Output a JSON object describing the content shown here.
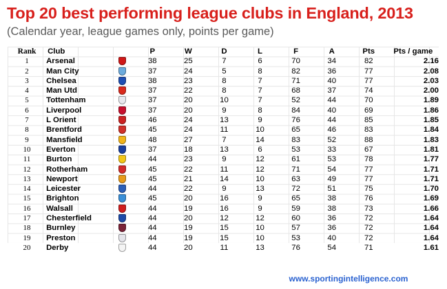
{
  "title": "Top 20 best performing league clubs in England, 2013",
  "subtitle": "(Calendar year, league games only, points per game)",
  "footer": "www.sportingintelligence.com",
  "chart_data": {
    "type": "table",
    "columns": [
      "Rank",
      "Club",
      "P",
      "W",
      "D",
      "L",
      "F",
      "A",
      "Pts",
      "Pts / game"
    ],
    "rows": [
      {
        "rank": "1",
        "club": "Arsenal",
        "crest_icon": "arsenal-crest-icon",
        "crest_color": "#d01818",
        "P": 38,
        "W": 25,
        "D": 7,
        "L": 6,
        "F": 70,
        "A": 34,
        "Pts": 82,
        "ppg": "2.16"
      },
      {
        "rank": "2",
        "club": "Man City",
        "crest_icon": "man-city-crest-icon",
        "crest_color": "#6cabdd",
        "P": 37,
        "W": 24,
        "D": 5,
        "L": 8,
        "F": 82,
        "A": 36,
        "Pts": 77,
        "ppg": "2.08"
      },
      {
        "rank": "3",
        "club": "Chelsea",
        "crest_icon": "chelsea-crest-icon",
        "crest_color": "#1f4fb4",
        "P": 38,
        "W": 23,
        "D": 8,
        "L": 7,
        "F": 71,
        "A": 40,
        "Pts": 77,
        "ppg": "2.03"
      },
      {
        "rank": "4",
        "club": "Man Utd",
        "crest_icon": "man-utd-crest-icon",
        "crest_color": "#da291c",
        "P": 37,
        "W": 22,
        "D": 8,
        "L": 7,
        "F": 68,
        "A": 37,
        "Pts": 74,
        "ppg": "2.00"
      },
      {
        "rank": "5",
        "club": "Tottenham",
        "crest_icon": "tottenham-crest-icon",
        "crest_color": "#e8e8ee",
        "P": 37,
        "W": 20,
        "D": 10,
        "L": 7,
        "F": 52,
        "A": 44,
        "Pts": 70,
        "ppg": "1.89"
      },
      {
        "rank": "6",
        "club": "Liverpool",
        "crest_icon": "liverpool-crest-icon",
        "crest_color": "#c8102e",
        "P": 37,
        "W": 20,
        "D": 9,
        "L": 8,
        "F": 84,
        "A": 40,
        "Pts": 69,
        "ppg": "1.86"
      },
      {
        "rank": "7",
        "club": "L Orient",
        "crest_icon": "leyton-orient-crest-icon",
        "crest_color": "#cc2222",
        "P": 46,
        "W": 24,
        "D": 13,
        "L": 9,
        "F": 76,
        "A": 44,
        "Pts": 85,
        "ppg": "1.85"
      },
      {
        "rank": "8",
        "club": "Brentford",
        "crest_icon": "brentford-crest-icon",
        "crest_color": "#d0302a",
        "P": 45,
        "W": 24,
        "D": 11,
        "L": 10,
        "F": 65,
        "A": 46,
        "Pts": 83,
        "ppg": "1.84"
      },
      {
        "rank": "9",
        "club": "Mansfield",
        "crest_icon": "mansfield-crest-icon",
        "crest_color": "#f2b418",
        "P": 48,
        "W": 27,
        "D": 7,
        "L": 14,
        "F": 83,
        "A": 52,
        "Pts": 88,
        "ppg": "1.83"
      },
      {
        "rank": "10",
        "club": "Everton",
        "crest_icon": "everton-crest-icon",
        "crest_color": "#1a3f9e",
        "P": 37,
        "W": 18,
        "D": 13,
        "L": 6,
        "F": 53,
        "A": 33,
        "Pts": 67,
        "ppg": "1.81"
      },
      {
        "rank": "11",
        "club": "Burton",
        "crest_icon": "burton-crest-icon",
        "crest_color": "#f2c618",
        "P": 44,
        "W": 23,
        "D": 9,
        "L": 12,
        "F": 61,
        "A": 53,
        "Pts": 78,
        "ppg": "1.77"
      },
      {
        "rank": "12",
        "club": "Rotherham",
        "crest_icon": "rotherham-crest-icon",
        "crest_color": "#d22a2a",
        "P": 45,
        "W": 22,
        "D": 11,
        "L": 12,
        "F": 71,
        "A": 54,
        "Pts": 77,
        "ppg": "1.71"
      },
      {
        "rank": "13",
        "club": "Newport",
        "crest_icon": "newport-crest-icon",
        "crest_color": "#e89a1a",
        "P": 45,
        "W": 21,
        "D": 14,
        "L": 10,
        "F": 63,
        "A": 49,
        "Pts": 77,
        "ppg": "1.71"
      },
      {
        "rank": "14",
        "club": "Leicester",
        "crest_icon": "leicester-crest-icon",
        "crest_color": "#2c5fb8",
        "P": 44,
        "W": 22,
        "D": 9,
        "L": 13,
        "F": 72,
        "A": 51,
        "Pts": 75,
        "ppg": "1.70"
      },
      {
        "rank": "15",
        "club": "Brighton",
        "crest_icon": "brighton-crest-icon",
        "crest_color": "#3a8fd8",
        "P": 45,
        "W": 20,
        "D": 16,
        "L": 9,
        "F": 65,
        "A": 38,
        "Pts": 76,
        "ppg": "1.69"
      },
      {
        "rank": "16",
        "club": "Walsall",
        "crest_icon": "walsall-crest-icon",
        "crest_color": "#d01e1e",
        "P": 44,
        "W": 19,
        "D": 16,
        "L": 9,
        "F": 59,
        "A": 38,
        "Pts": 73,
        "ppg": "1.66"
      },
      {
        "rank": "17",
        "club": "Chesterfield",
        "crest_icon": "chesterfield-crest-icon",
        "crest_color": "#1d4aa8",
        "P": 44,
        "W": 20,
        "D": 12,
        "L": 12,
        "F": 60,
        "A": 36,
        "Pts": 72,
        "ppg": "1.64"
      },
      {
        "rank": "18",
        "club": "Burnley",
        "crest_icon": "burnley-crest-icon",
        "crest_color": "#7a2338",
        "P": 44,
        "W": 19,
        "D": 15,
        "L": 10,
        "F": 57,
        "A": 36,
        "Pts": 72,
        "ppg": "1.64"
      },
      {
        "rank": "19",
        "club": "Preston",
        "crest_icon": "preston-crest-icon",
        "crest_color": "#e4e4ea",
        "P": 44,
        "W": 19,
        "D": 15,
        "L": 10,
        "F": 53,
        "A": 40,
        "Pts": 72,
        "ppg": "1.64"
      },
      {
        "rank": "20",
        "club": "Derby",
        "crest_icon": "derby-crest-icon",
        "crest_color": "#f4f4f4",
        "P": 44,
        "W": 20,
        "D": 11,
        "L": 13,
        "F": 76,
        "A": 54,
        "Pts": 71,
        "ppg": "1.61"
      }
    ],
    "grid": true
  },
  "colors": {
    "title": "#d8201c",
    "subtitle": "#5a5a5a",
    "footer_link": "#2a62d0",
    "gridline": "#e6e6e6"
  }
}
